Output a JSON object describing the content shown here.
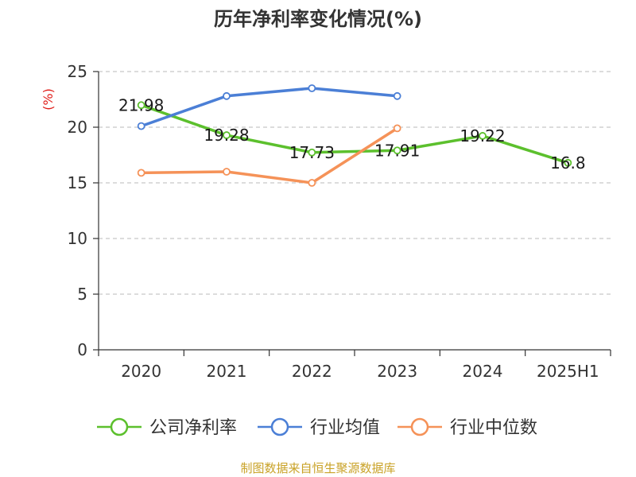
{
  "chart_data": {
    "type": "line",
    "title": "历年净利率变化情况(%)",
    "ylabel": "(%)",
    "xlabel": "",
    "categories": [
      "2020",
      "2021",
      "2022",
      "2023",
      "2024",
      "2025H1"
    ],
    "ylim": [
      0,
      25
    ],
    "yticks": [
      0,
      5,
      10,
      15,
      20,
      25
    ],
    "grid": "horizontal-dashed",
    "legend_position": "bottom",
    "series": [
      {
        "name": "公司净利率",
        "color": "#5cc02d",
        "values": [
          21.98,
          19.28,
          17.73,
          17.91,
          19.22,
          16.8
        ],
        "labels": [
          "21.98",
          "19.28",
          "17.73",
          "17.91",
          "19.22",
          "16.8"
        ]
      },
      {
        "name": "行业均值",
        "color": "#4b7fd6",
        "values": [
          20.1,
          22.8,
          23.5,
          22.8,
          null,
          null
        ]
      },
      {
        "name": "行业中位数",
        "color": "#f59258",
        "values": [
          15.9,
          16.0,
          15.0,
          19.9,
          null,
          null
        ]
      }
    ]
  },
  "footer": {
    "source": "制图数据来自恒生聚源数据库"
  }
}
